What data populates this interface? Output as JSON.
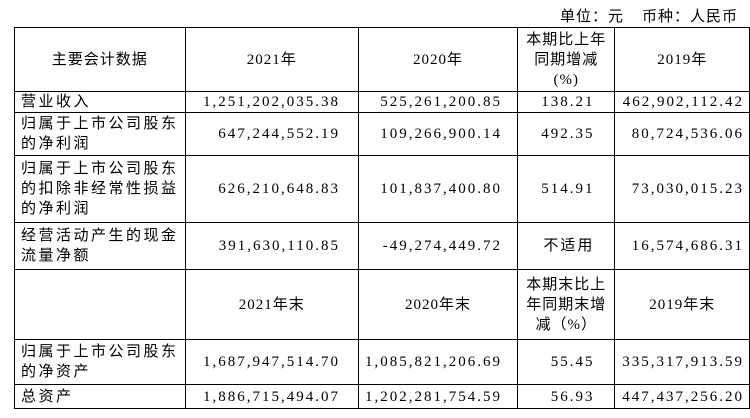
{
  "unit_line": {
    "unit": "单位：元",
    "currency": "币种：人民币"
  },
  "table": {
    "header": [
      [
        "主要会计数据"
      ],
      [
        "2021年"
      ],
      [
        "2020年"
      ],
      [
        "本期比上年",
        "同期增减",
        "(%)"
      ],
      [
        "2019年"
      ]
    ],
    "rows": [
      [
        [
          "营业收入"
        ],
        "1,251,202,035.38",
        "525,261,200.85",
        "138.21",
        "462,902,112.42"
      ],
      [
        [
          "归属于上市公司股东",
          "的净利润"
        ],
        "647,244,552.19",
        "109,266,900.14",
        "492.35",
        "80,724,536.06"
      ],
      [
        [
          "归属于上市公司股东",
          "的扣除非经常性损益",
          "的净利润"
        ],
        "626,210,648.83",
        "101,837,400.80",
        "514.91",
        "73,030,015.23"
      ],
      [
        [
          "经营活动产生的现金",
          "流量净额"
        ],
        "391,630,110.85",
        "-49,274,449.72",
        "不适用",
        "16,574,686.31"
      ]
    ],
    "header2": [
      [
        "2021年末"
      ],
      [
        "2020年末"
      ],
      [
        "本期末比上",
        "年同期末增",
        "减（%）"
      ],
      [
        "2019年末"
      ]
    ],
    "rows2": [
      [
        [
          "归属于上市公司股东",
          "的净资产"
        ],
        "1,687,947,514.70",
        "1,085,821,206.69",
        "55.45",
        "335,317,913.59"
      ],
      [
        [
          "总资产"
        ],
        "1,886,715,494.07",
        "1,202,281,754.59",
        "56.93",
        "447,437,256.20"
      ]
    ]
  }
}
